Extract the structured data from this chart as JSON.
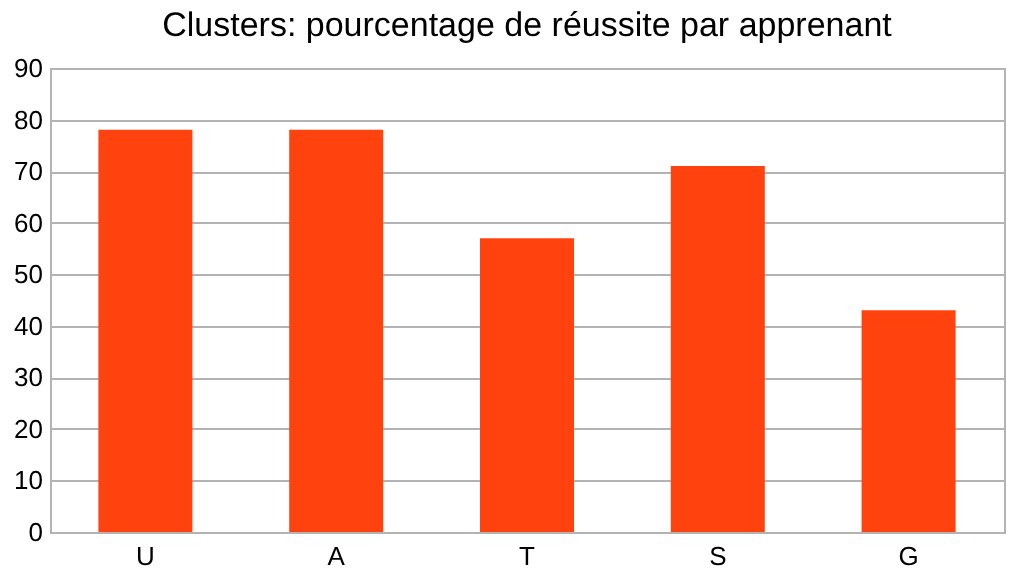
{
  "chart_data": {
    "type": "bar",
    "title": "Clusters: pourcentage de réussite par apprenant",
    "categories": [
      "U",
      "A",
      "T",
      "S",
      "G"
    ],
    "values": [
      78,
      78,
      57,
      71,
      43
    ],
    "color": "#ff420e",
    "ylim": [
      0,
      90
    ],
    "yticks": [
      0,
      10,
      20,
      30,
      40,
      50,
      60,
      70,
      80,
      90
    ],
    "grid": "y"
  }
}
